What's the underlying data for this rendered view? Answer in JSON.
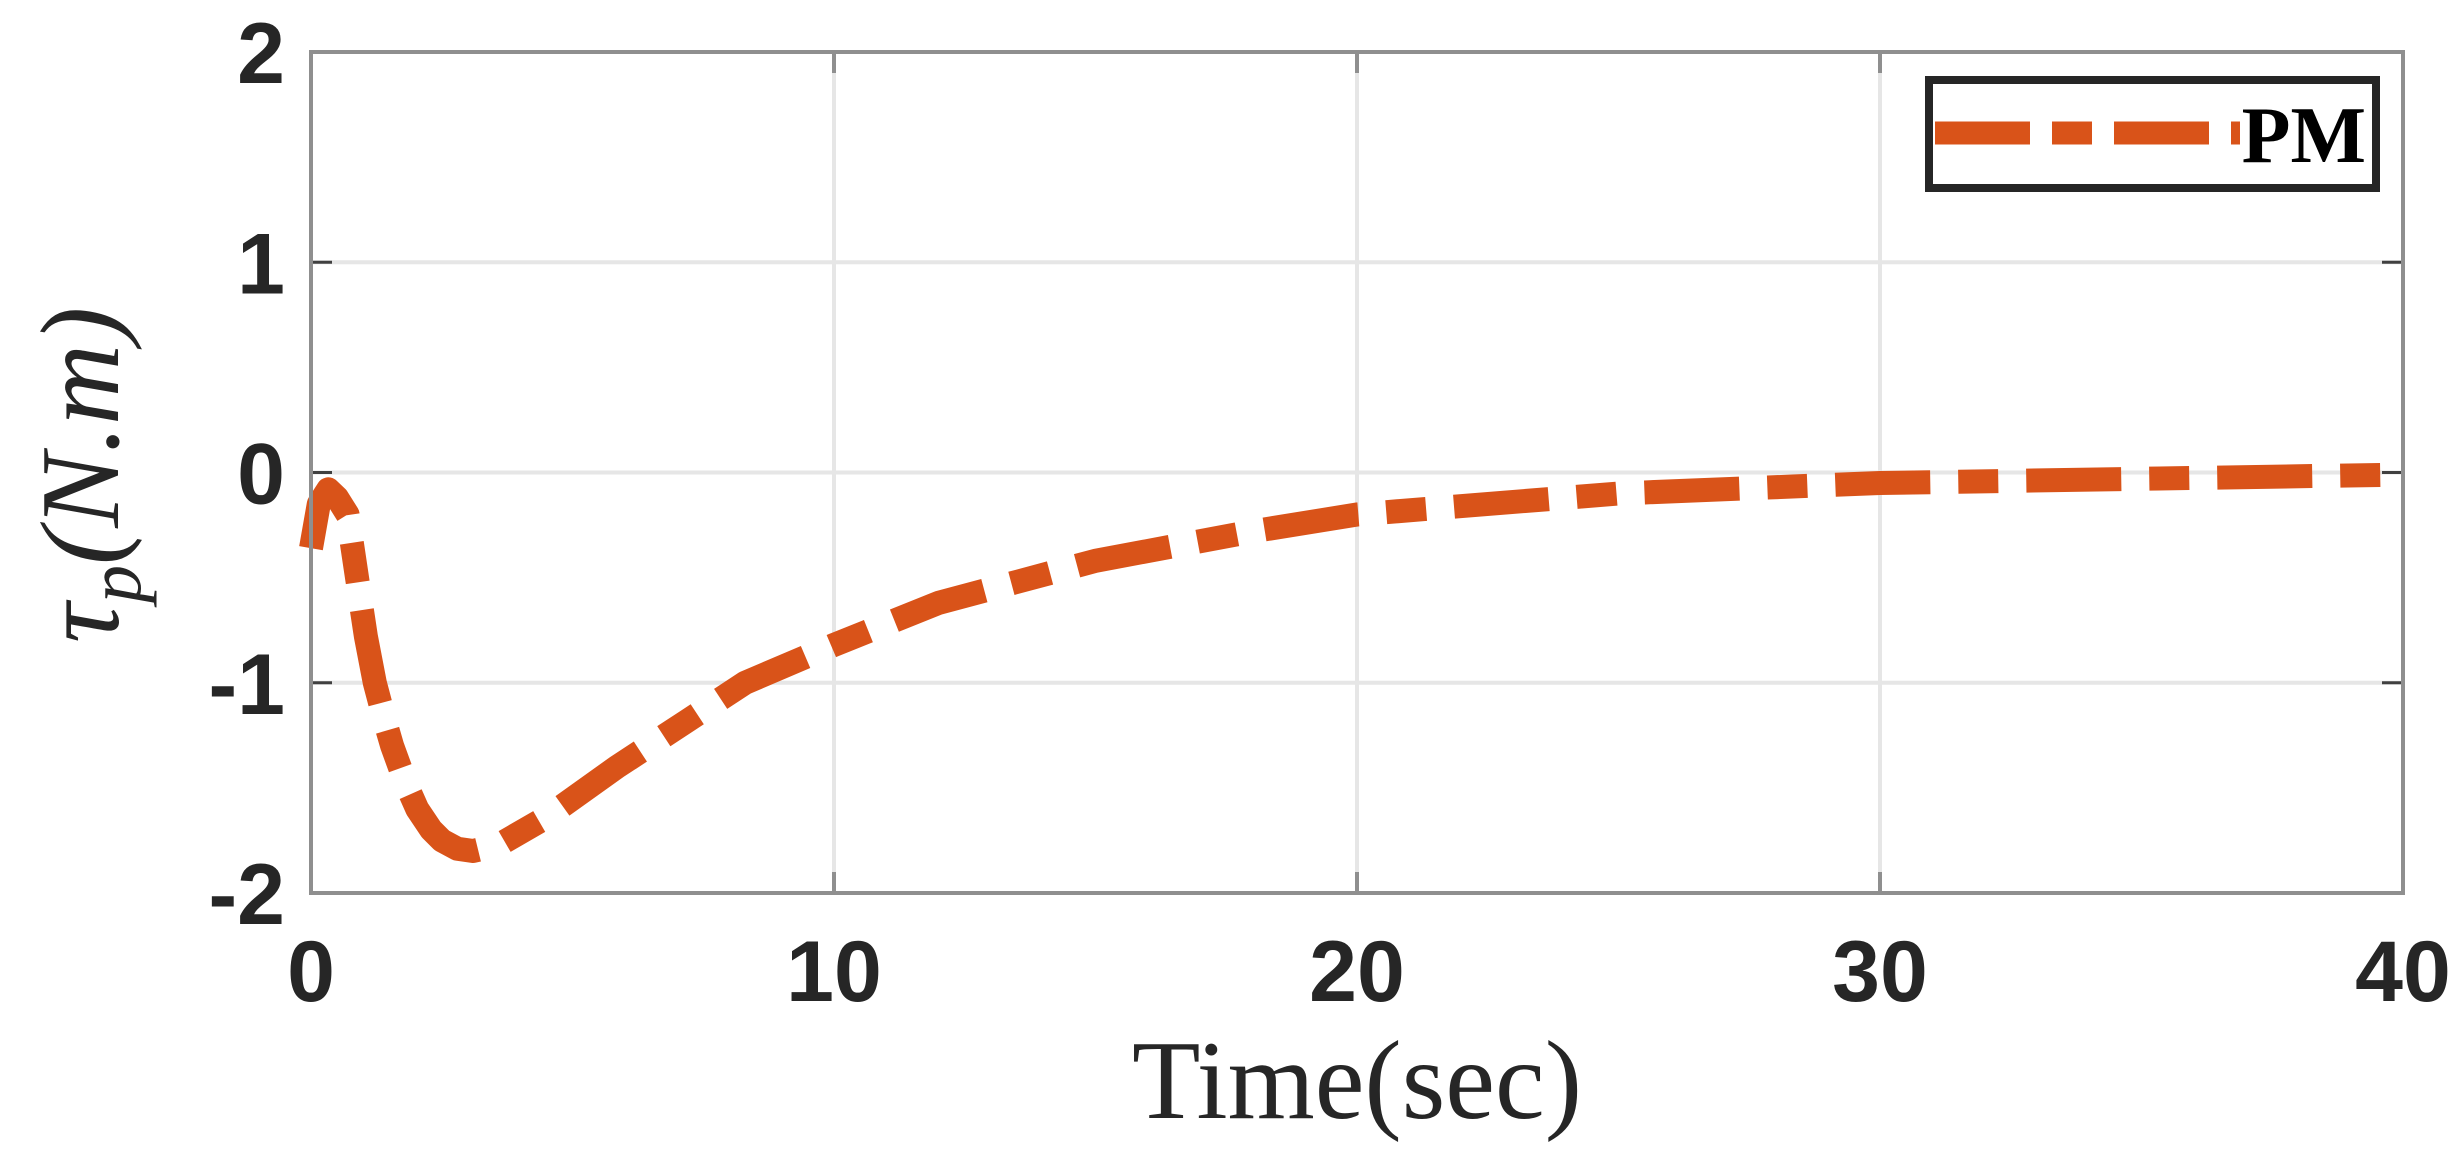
{
  "chart_data": {
    "type": "line",
    "title": "",
    "xlabel": "Time(sec)",
    "ylabel_symbol": "τ",
    "ylabel_subscript": "p",
    "ylabel_units": "(N.m)",
    "ylabel": "τ_p(N.m)",
    "xlim": [
      0,
      40
    ],
    "ylim": [
      -2,
      2
    ],
    "xticks": [
      0,
      10,
      20,
      30,
      40
    ],
    "xtick_labels": [
      "0",
      "10",
      "20",
      "30",
      "40"
    ],
    "yticks": [
      -2,
      -1,
      0,
      1,
      2
    ],
    "ytick_labels": [
      "-2",
      "-1",
      "0",
      "1",
      "2"
    ],
    "grid": true,
    "legend_position": "upper right",
    "series": [
      {
        "name": "PM",
        "color": "#D95319",
        "line_style": "dashed",
        "x": [
          0,
          0.15,
          0.33,
          0.5,
          0.7,
          0.88,
          1.05,
          1.22,
          1.4,
          1.55,
          1.8,
          2.03,
          2.3,
          2.5,
          2.8,
          3.1,
          3.6,
          4.5,
          5.85,
          7.2,
          8.3,
          10,
          12,
          15,
          18,
          20,
          25,
          30,
          35,
          40
        ],
        "values": [
          -0.36,
          -0.15,
          -0.08,
          -0.12,
          -0.2,
          -0.5,
          -0.78,
          -1.0,
          -1.17,
          -1.3,
          -1.47,
          -1.6,
          -1.7,
          -1.75,
          -1.79,
          -1.8,
          -1.77,
          -1.64,
          -1.4,
          -1.18,
          -1.0,
          -0.82,
          -0.62,
          -0.42,
          -0.28,
          -0.2,
          -0.1,
          -0.05,
          -0.03,
          -0.01
        ]
      }
    ]
  },
  "legend": {
    "items": [
      {
        "label": "PM",
        "color": "#D95319"
      }
    ]
  },
  "colors": {
    "series": "#D95319",
    "axis": "#8f8f8f",
    "grid": "#e6e6e6",
    "text": "#262626",
    "legend_border": "#262626"
  }
}
